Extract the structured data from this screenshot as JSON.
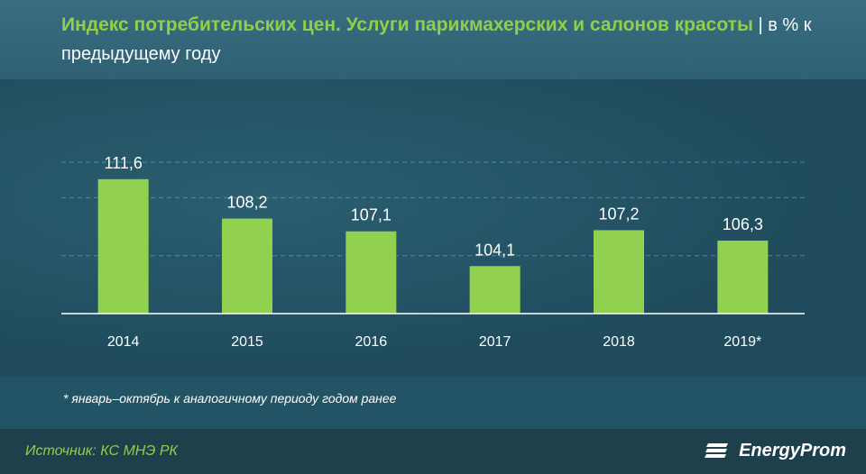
{
  "header": {
    "title_main": "Индекс потребительских цен. Услуги парикмахерских и салонов красоты",
    "title_sep": " | ",
    "title_sub": "в % к предыдущему  году"
  },
  "chart_data": {
    "type": "bar",
    "categories": [
      "2014",
      "2015",
      "2016",
      "2017",
      "2018",
      "2019*"
    ],
    "values": [
      111.6,
      108.2,
      107.1,
      104.1,
      107.2,
      106.3
    ],
    "value_labels": [
      "111,6",
      "108,2",
      "107,1",
      "104,1",
      "107,2",
      "106,3"
    ],
    "ylim": [
      100,
      114
    ],
    "grid": true,
    "bar_color": "#92d050"
  },
  "footnote": "* январь–октябрь к аналогичному периоду годом ранее",
  "footer": {
    "source": "Источник: КС МНЭ РК",
    "brand": "EnergyProm"
  },
  "colors": {
    "background": "#235466",
    "accent": "#8fcf4a"
  }
}
